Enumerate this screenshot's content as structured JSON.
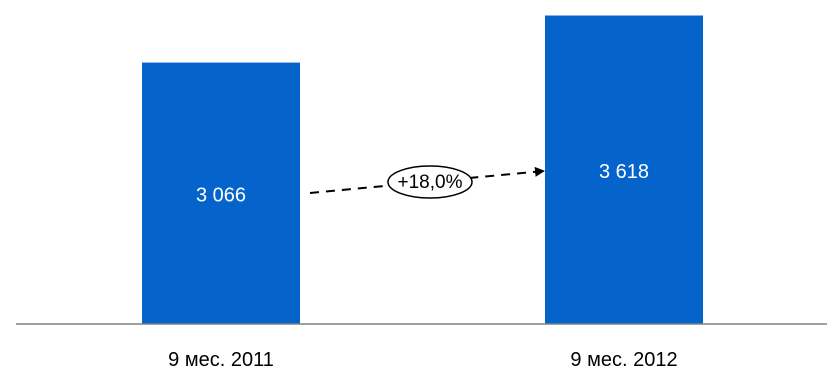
{
  "chart_data": {
    "type": "bar",
    "title": "",
    "xlabel": "",
    "ylabel": "",
    "categories": [
      "9 мес. 2011",
      "9 мес. 2012"
    ],
    "values": [
      3066,
      3618
    ],
    "value_labels": [
      "3 066",
      "3 618"
    ],
    "ylim": [
      0,
      3800
    ],
    "grid": false,
    "legend": "none",
    "bar_color": "#0563CC",
    "axis_color": "#808080",
    "annotation": {
      "text": "+18,0%",
      "from_category": "9 мес. 2011",
      "to_category": "9 мес. 2012",
      "style": "dashed-arrow-with-ellipse"
    }
  }
}
